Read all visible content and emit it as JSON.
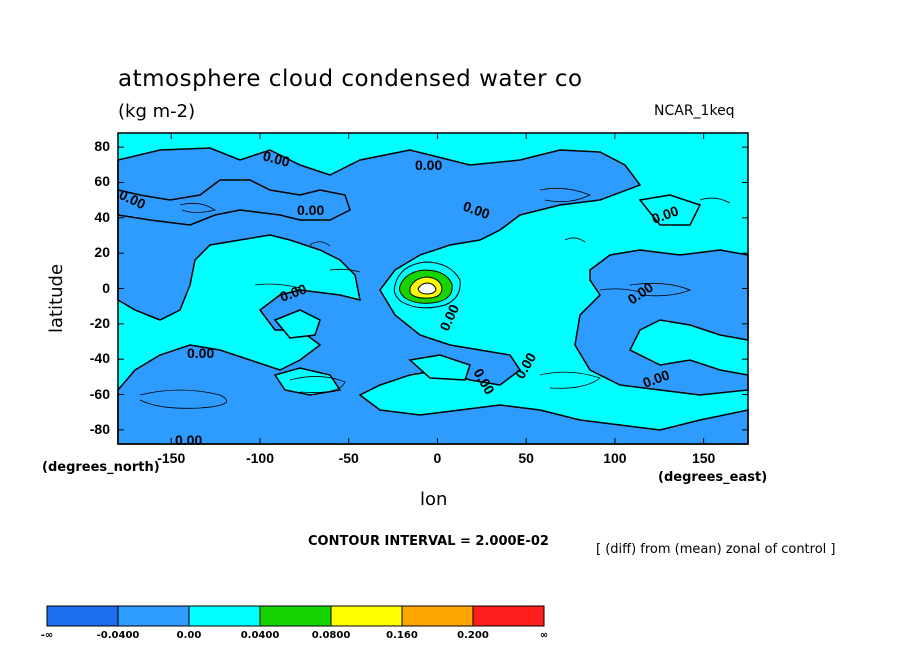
{
  "title": "atmosphere cloud condensed water co",
  "units": "(kg m-2)",
  "model": "NCAR_1keq",
  "ylabel": "latitude",
  "xlabel": "lon",
  "y_units": "(degrees_north)",
  "x_units": "(degrees_east)",
  "contour_interval": "CONTOUR INTERVAL = 2.000E-02",
  "note": "[ (diff) from (mean) zonal of control ]",
  "chart_data": {
    "type": "heatmap",
    "subtype": "filled-contour-map",
    "x_ticks": [
      "-150",
      "-100",
      "-50",
      "0",
      "50",
      "100",
      "150"
    ],
    "y_ticks": [
      "80",
      "60",
      "40",
      "20",
      "0",
      "-20",
      "-40",
      "-60",
      "-80"
    ],
    "xlim": [
      -180,
      175
    ],
    "ylim": [
      -88,
      88
    ],
    "contour_labels": [
      "0.00",
      "0.00",
      "0.00",
      "0.00",
      "0.00",
      "0.00",
      "0.00",
      "0.00",
      "0.00",
      "0.00",
      "0.00",
      "0.00",
      "0.00",
      "0.00"
    ],
    "colorbar": {
      "colors": [
        "#1e6ef0",
        "#2e9cff",
        "#00ffff",
        "#16d400",
        "#ffff00",
        "#ffa500",
        "#ff1e1e"
      ],
      "labels": [
        "-∞",
        "-0.0400",
        "0.00",
        "0.0400",
        "0.0800",
        "0.160",
        "0.200",
        "∞"
      ]
    },
    "feature": {
      "name": "maximum",
      "lon": -5,
      "lat": 0,
      "level": "0.0800-0.160"
    }
  }
}
